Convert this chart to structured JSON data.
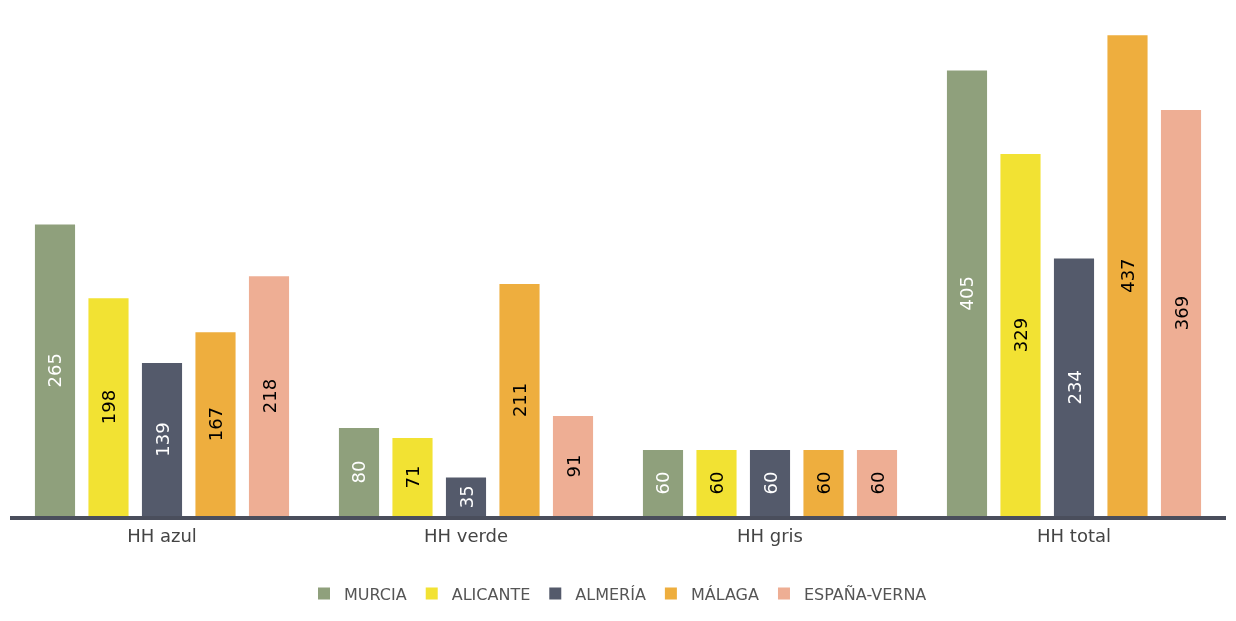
{
  "chart_data": {
    "type": "bar",
    "categories": [
      "HH azul",
      "HH verde",
      "HH gris",
      "HH total"
    ],
    "series": [
      {
        "name": "MURCIA",
        "color": "#8fa07c",
        "values": [
          265,
          80,
          60,
          405
        ]
      },
      {
        "name": "ALICANTE",
        "color": "#f2e233",
        "values": [
          198,
          71,
          60,
          329
        ]
      },
      {
        "name": "ALMERÍA",
        "color": "#545a6b",
        "values": [
          139,
          35,
          60,
          234
        ]
      },
      {
        "name": "MÁLAGA",
        "color": "#eeae3e",
        "values": [
          167,
          211,
          60,
          437
        ]
      },
      {
        "name": "ESPAÑA-VERNA",
        "color": "#eeae94",
        "values": [
          218,
          91,
          60,
          369
        ]
      }
    ],
    "data_labels": true,
    "legend": "bottom"
  }
}
